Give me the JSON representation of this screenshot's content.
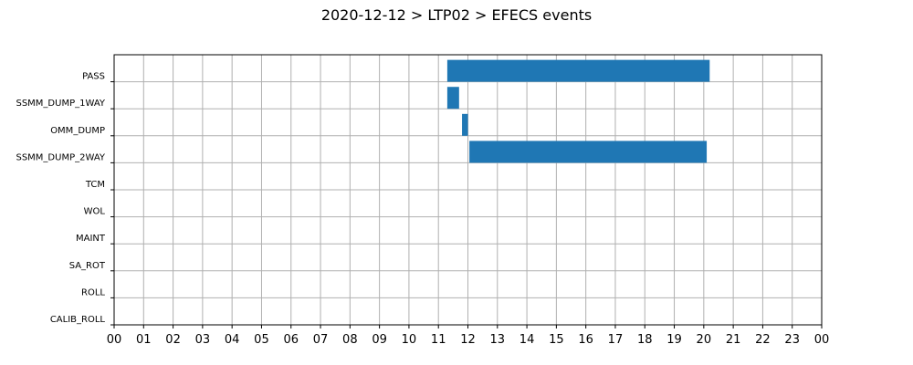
{
  "chart_data": {
    "type": "bar",
    "orientation": "horizontal-timeline",
    "title": "2020-12-12 > LTP02 > EFECS events",
    "xlabel": "",
    "ylabel": "",
    "categories": [
      "PASS",
      "SSMM_DUMP_1WAY",
      "OMM_DUMP",
      "SSMM_DUMP_2WAY",
      "TCM",
      "WOL",
      "MAINT",
      "SA_ROT",
      "ROLL",
      "CALIB_ROLL"
    ],
    "xlim": [
      0,
      24
    ],
    "x_ticks": [
      0,
      1,
      2,
      3,
      4,
      5,
      6,
      7,
      8,
      9,
      10,
      11,
      12,
      13,
      14,
      15,
      16,
      17,
      18,
      19,
      20,
      21,
      22,
      23,
      24
    ],
    "x_tick_labels": [
      "00",
      "01",
      "02",
      "03",
      "04",
      "05",
      "06",
      "07",
      "08",
      "09",
      "10",
      "11",
      "12",
      "13",
      "14",
      "15",
      "16",
      "17",
      "18",
      "19",
      "20",
      "21",
      "22",
      "23",
      "00"
    ],
    "grid": true,
    "bar_color": "#1f77b4",
    "events": [
      {
        "category": "PASS",
        "start": 11.3,
        "end": 20.2
      },
      {
        "category": "SSMM_DUMP_1WAY",
        "start": 11.3,
        "end": 11.7
      },
      {
        "category": "OMM_DUMP",
        "start": 11.8,
        "end": 12.0
      },
      {
        "category": "SSMM_DUMP_2WAY",
        "start": 12.05,
        "end": 20.1
      }
    ]
  }
}
